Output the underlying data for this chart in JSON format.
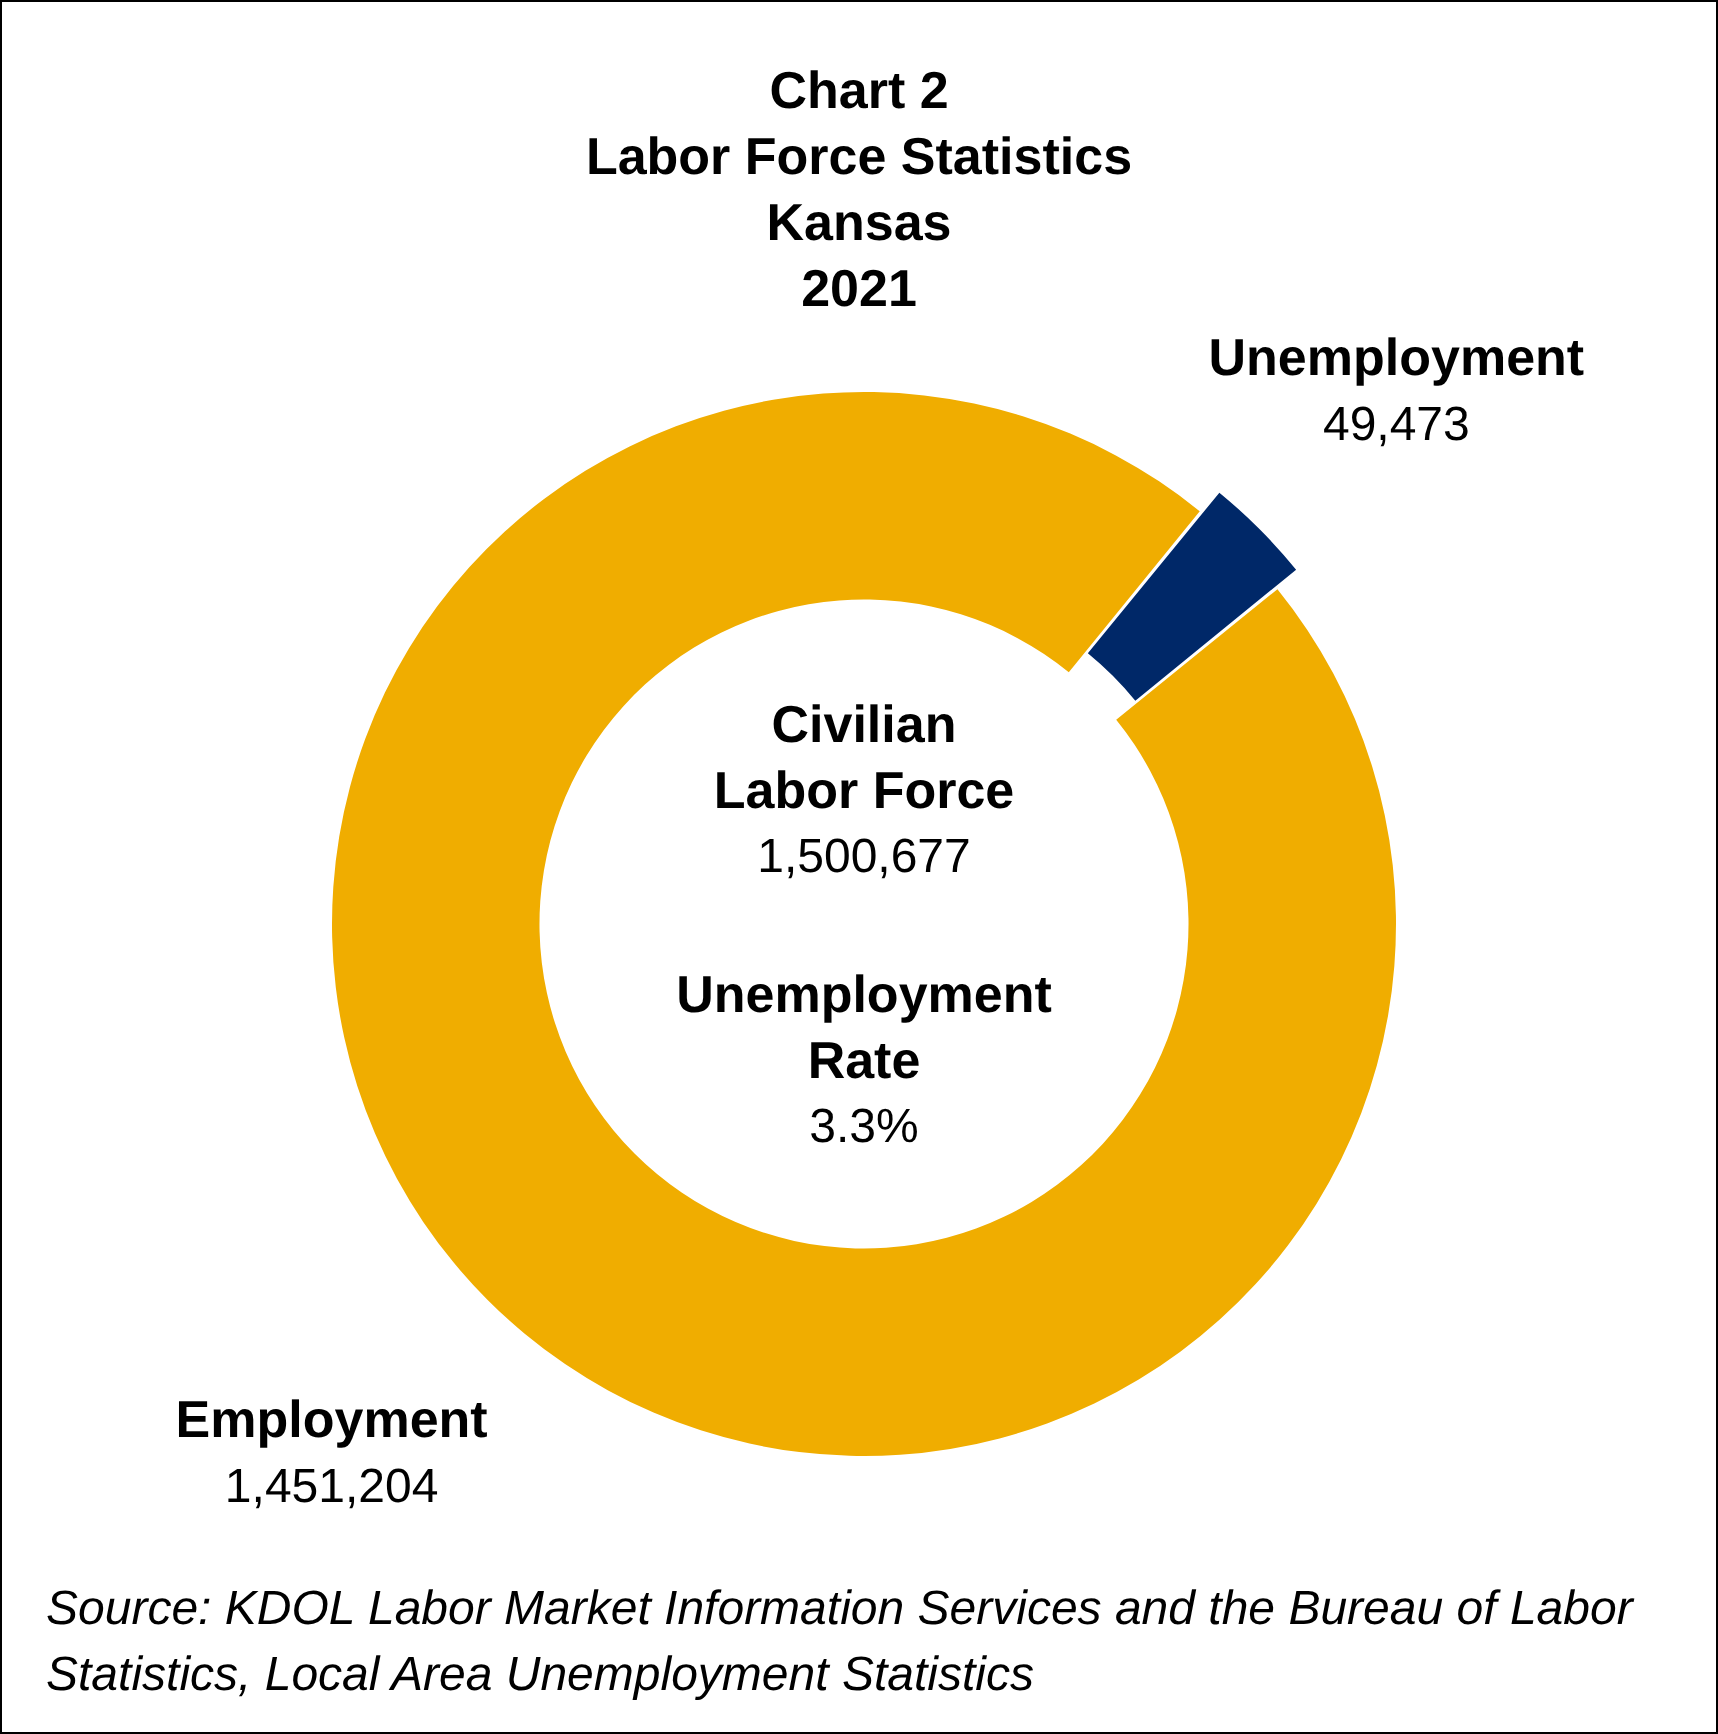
{
  "chart_data": {
    "type": "donut",
    "title": "Chart 2\nLabor Force Statistics\nKansas\n2021",
    "categories": [
      "Employment",
      "Unemployment"
    ],
    "values": [
      1451204,
      49473
    ],
    "colors": [
      "#f0ad00",
      "#002868"
    ],
    "value_labels": [
      "1,451,204",
      "49,473"
    ],
    "legend": false,
    "annotations": [
      "Civilian Labor Force",
      "1,500,677",
      "Unemployment Rate",
      "3.3%",
      "Source: KDOL Labor Market Information Services and the Bureau of Labor Statistics, Local Area Unemployment Statistics"
    ]
  }
}
